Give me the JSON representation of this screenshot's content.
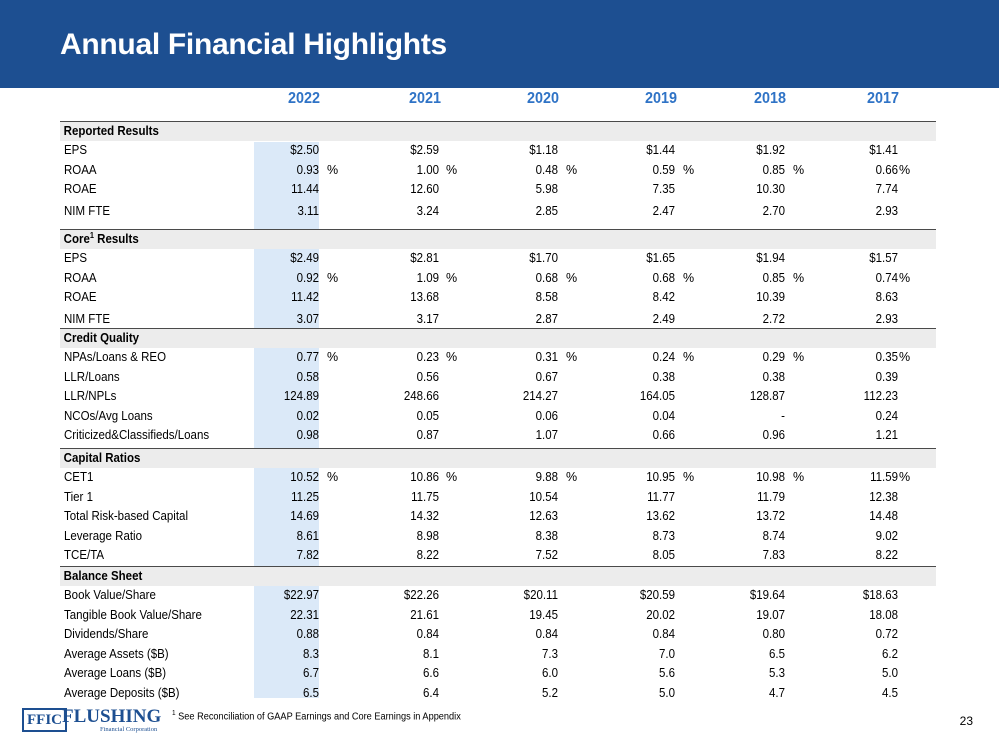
{
  "title": "Annual Financial Highlights",
  "years": [
    "2022",
    "2021",
    "2020",
    "2019",
    "2018",
    "2017"
  ],
  "sections": [
    {
      "title": "Reported Results",
      "superscript": "",
      "rows": [
        {
          "label": "EPS",
          "values": [
            "$2.50",
            "$2.59",
            "$1.18",
            "$1.44",
            "$1.92",
            "$1.41"
          ],
          "unit": ""
        },
        {
          "label": "ROAA",
          "values": [
            "0.93",
            "1.00",
            "0.48",
            "0.59",
            "0.85",
            "0.66"
          ],
          "unit": "%"
        },
        {
          "label": "ROAE",
          "values": [
            "11.44",
            "12.60",
            "5.98",
            "7.35",
            "10.30",
            "7.74"
          ],
          "unit": ""
        },
        {
          "label": "NIM FTE",
          "values": [
            "3.11",
            "3.24",
            "2.85",
            "2.47",
            "2.70",
            "2.93"
          ],
          "unit": ""
        }
      ]
    },
    {
      "title": "Core",
      "superscript": "1",
      "title_suffix": " Results",
      "rows": [
        {
          "label": "EPS",
          "values": [
            "$2.49",
            "$2.81",
            "$1.70",
            "$1.65",
            "$1.94",
            "$1.57"
          ],
          "unit": ""
        },
        {
          "label": "ROAA",
          "values": [
            "0.92",
            "1.09",
            "0.68",
            "0.68",
            "0.85",
            "0.74"
          ],
          "unit": "%"
        },
        {
          "label": "ROAE",
          "values": [
            "11.42",
            "13.68",
            "8.58",
            "8.42",
            "10.39",
            "8.63"
          ],
          "unit": ""
        },
        {
          "label": "NIM FTE",
          "values": [
            "3.07",
            "3.17",
            "2.87",
            "2.49",
            "2.72",
            "2.93"
          ],
          "unit": ""
        }
      ]
    },
    {
      "title": "Credit Quality",
      "superscript": "",
      "rows": [
        {
          "label": "NPAs/Loans & REO",
          "values": [
            "0.77",
            "0.23",
            "0.31",
            "0.24",
            "0.29",
            "0.35"
          ],
          "unit": "%"
        },
        {
          "label": "LLR/Loans",
          "values": [
            "0.58",
            "0.56",
            "0.67",
            "0.38",
            "0.38",
            "0.39"
          ],
          "unit": ""
        },
        {
          "label": "LLR/NPLs",
          "values": [
            "124.89",
            "248.66",
            "214.27",
            "164.05",
            "128.87",
            "112.23"
          ],
          "unit": ""
        },
        {
          "label": "NCOs/Avg Loans",
          "values": [
            "0.02",
            "0.05",
            "0.06",
            "0.04",
            "-",
            "0.24"
          ],
          "unit": ""
        },
        {
          "label": "Criticized&Classifieds/Loans",
          "values": [
            "0.98",
            "0.87",
            "1.07",
            "0.66",
            "0.96",
            "1.21"
          ],
          "unit": ""
        }
      ]
    },
    {
      "title": "Capital Ratios",
      "superscript": "",
      "rows": [
        {
          "label": "CET1",
          "values": [
            "10.52",
            "10.86",
            "9.88",
            "10.95",
            "10.98",
            "11.59"
          ],
          "unit": "%"
        },
        {
          "label": "Tier 1",
          "values": [
            "11.25",
            "11.75",
            "10.54",
            "11.77",
            "11.79",
            "12.38"
          ],
          "unit": ""
        },
        {
          "label": "Total Risk-based Capital",
          "values": [
            "14.69",
            "14.32",
            "12.63",
            "13.62",
            "13.72",
            "14.48"
          ],
          "unit": ""
        },
        {
          "label": "Leverage Ratio",
          "values": [
            "8.61",
            "8.98",
            "8.38",
            "8.73",
            "8.74",
            "9.02"
          ],
          "unit": ""
        },
        {
          "label": "TCE/TA",
          "values": [
            "7.82",
            "8.22",
            "7.52",
            "8.05",
            "7.83",
            "8.22"
          ],
          "unit": ""
        }
      ]
    },
    {
      "title": "Balance Sheet",
      "superscript": "",
      "rows": [
        {
          "label": "Book Value/Share",
          "values": [
            "$22.97",
            "$22.26",
            "$20.11",
            "$20.59",
            "$19.64",
            "$18.63"
          ],
          "unit": ""
        },
        {
          "label": "Tangible Book Value/Share",
          "values": [
            "22.31",
            "21.61",
            "19.45",
            "20.02",
            "19.07",
            "18.08"
          ],
          "unit": ""
        },
        {
          "label": "Dividends/Share",
          "values": [
            "0.88",
            "0.84",
            "0.84",
            "0.84",
            "0.80",
            "0.72"
          ],
          "unit": ""
        },
        {
          "label": "Average Assets ($B)",
          "values": [
            "8.3",
            "8.1",
            "7.3",
            "7.0",
            "6.5",
            "6.2"
          ],
          "unit": ""
        },
        {
          "label": "Average Loans ($B)",
          "values": [
            "6.7",
            "6.6",
            "6.0",
            "5.6",
            "5.3",
            "5.0"
          ],
          "unit": ""
        },
        {
          "label": "Average Deposits ($B)",
          "values": [
            "6.5",
            "6.4",
            "5.2",
            "5.0",
            "4.7",
            "4.5"
          ],
          "unit": ""
        }
      ]
    }
  ],
  "footer": {
    "logo_abbrev": "FFIC",
    "logo_name": "FLUSHING",
    "logo_sub": "Financial Corporation",
    "footnote_marker": "1",
    "footnote": " See Reconciliation of GAAP Earnings and Core Earnings in Appendix",
    "page_number": "23"
  },
  "colors": {
    "header_bg": "#1d4f91",
    "year_text": "#2f73c6",
    "highlight_col": "#dbe9f8",
    "section_bg": "#ececec"
  }
}
